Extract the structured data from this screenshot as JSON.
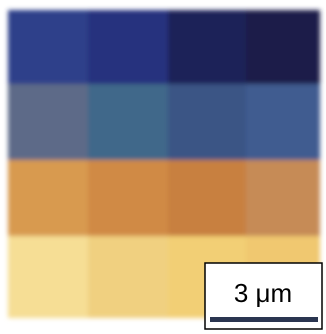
{
  "scale_bar": {
    "label": "3 μm"
  }
}
